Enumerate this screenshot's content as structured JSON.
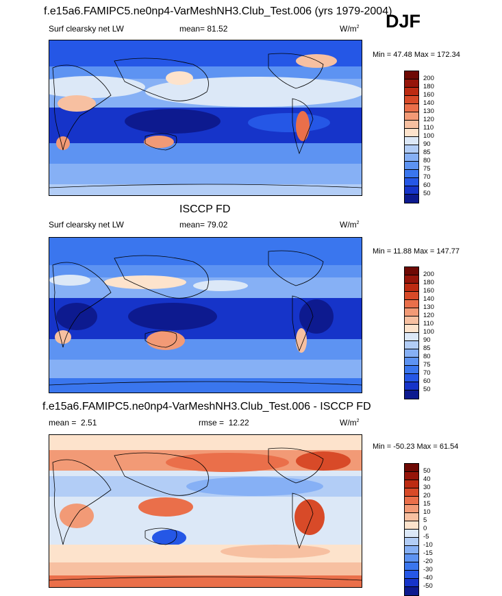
{
  "title_main": "f.e15a6.FAMIPC5.ne0np4-VarMeshNH3.Club_Test.006 (yrs 1979-2004)",
  "season": "DJF",
  "panels": [
    {
      "variable": "Surf clearsky net LW",
      "stat_label": "mean=",
      "stat_value": "81.52",
      "units": "W/m",
      "units_sup": "2",
      "minmax": "Min =  47.48 Max = 172.34"
    },
    {
      "heading": "ISCCP FD",
      "variable": "Surf clearsky net LW",
      "stat_label": "mean=",
      "stat_value": "79.02",
      "units": "W/m",
      "units_sup": "2",
      "minmax": "Min =  11.88 Max = 147.77"
    },
    {
      "heading": "f.e15a6.FAMIPC5.ne0np4-VarMeshNH3.Club_Test.006 - ISCCP FD",
      "mean_label": "mean =",
      "mean_value": "2.51",
      "rmse_label": "rmse =",
      "rmse_value": "12.22",
      "units": "W/m",
      "units_sup": "2",
      "minmax": "Min = -50.23 Max =  61.54"
    }
  ],
  "chart_data": [
    {
      "type": "heatmap",
      "title": "f.e15a6.FAMIPC5.ne0np4-VarMeshNH3.Club_Test.006 (yrs 1979-2004)",
      "subtitle": "Surf clearsky net LW",
      "mean": 81.52,
      "min": 47.48,
      "max": 172.34,
      "units": "W/m2",
      "colorbar_levels": [
        50,
        60,
        70,
        75,
        80,
        85,
        90,
        100,
        110,
        120,
        130,
        140,
        160,
        180,
        200
      ],
      "colorbar_colors": [
        "#0d1a8f",
        "#1634c9",
        "#2557e6",
        "#3a76ee",
        "#5d93f2",
        "#86b0f5",
        "#b2cdf6",
        "#dce8f7",
        "#fde3cc",
        "#f7c0a1",
        "#f29a76",
        "#ea6f4a",
        "#d84a28",
        "#bd2b12",
        "#96150a",
        "#6e0904"
      ]
    },
    {
      "type": "heatmap",
      "title": "ISCCP FD",
      "subtitle": "Surf clearsky net LW",
      "mean": 79.02,
      "min": 11.88,
      "max": 147.77,
      "units": "W/m2",
      "colorbar_levels": [
        50,
        60,
        70,
        75,
        80,
        85,
        90,
        100,
        110,
        120,
        130,
        140,
        160,
        180,
        200
      ],
      "colorbar_colors": [
        "#0d1a8f",
        "#1634c9",
        "#2557e6",
        "#3a76ee",
        "#5d93f2",
        "#86b0f5",
        "#b2cdf6",
        "#dce8f7",
        "#fde3cc",
        "#f7c0a1",
        "#f29a76",
        "#ea6f4a",
        "#d84a28",
        "#bd2b12",
        "#96150a",
        "#6e0904"
      ]
    },
    {
      "type": "heatmap",
      "title": "f.e15a6.FAMIPC5.ne0np4-VarMeshNH3.Club_Test.006 - ISCCP FD",
      "mean": 2.51,
      "rmse": 12.22,
      "min": -50.23,
      "max": 61.54,
      "units": "W/m2",
      "colorbar_levels": [
        -50,
        -40,
        -30,
        -20,
        -15,
        -10,
        -5,
        0,
        5,
        10,
        15,
        20,
        30,
        40,
        50
      ],
      "colorbar_colors": [
        "#0d1a8f",
        "#1634c9",
        "#2557e6",
        "#3a76ee",
        "#5d93f2",
        "#86b0f5",
        "#b2cdf6",
        "#dce8f7",
        "#fde3cc",
        "#f7c0a1",
        "#f29a76",
        "#ea6f4a",
        "#d84a28",
        "#bd2b12",
        "#96150a",
        "#6e0904"
      ]
    }
  ]
}
